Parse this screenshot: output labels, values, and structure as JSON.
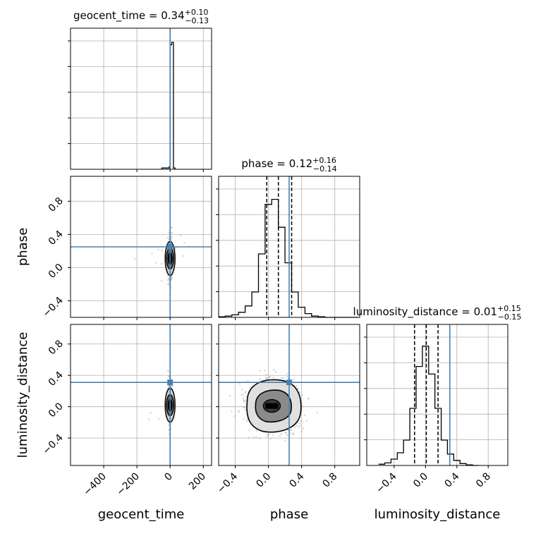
{
  "chart_data": {
    "type": "corner",
    "parameters": [
      "geocent_time",
      "phase",
      "luminosity_distance"
    ],
    "truth_color": "#4682b4",
    "truth": {
      "geocent_time": 0,
      "phase": 0.25,
      "luminosity_distance": 0.31
    },
    "diagonal": [
      {
        "param": "geocent_time",
        "title": {
          "prefix": "geocent_time = 0.34",
          "sup": "+0.10",
          "sub": "−0.13"
        },
        "xlim": [
          -600,
          250
        ],
        "bins": [
          [
            -50,
            -5,
            0.01
          ],
          [
            -5,
            0,
            0.02
          ],
          [
            0,
            10,
            0.98
          ],
          [
            10,
            20,
            1.0
          ],
          [
            20,
            30,
            0.01
          ]
        ],
        "quantiles": [
          0.21,
          0.34,
          0.44
        ],
        "truth": 0
      },
      {
        "param": "phase",
        "title": {
          "prefix": "phase = 0.12",
          "sup": "+0.16",
          "sub": "−0.14"
        },
        "xlim": [
          -0.6,
          1.1
        ],
        "bin_edges": [
          -0.6,
          -0.52,
          -0.44,
          -0.36,
          -0.28,
          -0.2,
          -0.12,
          -0.04,
          0.04,
          0.12,
          0.2,
          0.28,
          0.36,
          0.44,
          0.52,
          0.6,
          0.68,
          0.76,
          0.84,
          0.92,
          1.0,
          1.08
        ],
        "counts": [
          0.005,
          0.01,
          0.02,
          0.04,
          0.09,
          0.2,
          0.5,
          0.89,
          0.93,
          0.71,
          0.43,
          0.2,
          0.08,
          0.03,
          0.01,
          0.005,
          0,
          0,
          0,
          0,
          0
        ],
        "quantiles": [
          -0.02,
          0.12,
          0.28
        ],
        "truth": 0.25
      },
      {
        "param": "luminosity_distance",
        "title": {
          "prefix": "luminosity_distance = 0.01",
          "sup": "+0.15",
          "sub": "−0.15"
        },
        "xlim": [
          -0.75,
          1.05
        ],
        "bin_edges": [
          -0.6,
          -0.52,
          -0.44,
          -0.36,
          -0.28,
          -0.2,
          -0.12,
          -0.04,
          0.04,
          0.12,
          0.2,
          0.28,
          0.36,
          0.44,
          0.52,
          0.6,
          0.68
        ],
        "counts": [
          0.01,
          0.02,
          0.05,
          0.1,
          0.2,
          0.45,
          0.78,
          0.94,
          0.72,
          0.45,
          0.2,
          0.09,
          0.04,
          0.015,
          0.005,
          0
        ],
        "quantiles": [
          -0.14,
          0.01,
          0.16
        ],
        "truth": 0.31
      }
    ],
    "panels_2d": [
      {
        "x": "geocent_time",
        "y": "phase",
        "xlim": [
          -600,
          250
        ],
        "ylim": [
          -0.6,
          1.1
        ],
        "center": [
          0,
          0.11
        ]
      },
      {
        "x": "geocent_time",
        "y": "luminosity_distance",
        "xlim": [
          -600,
          250
        ],
        "ylim": [
          -0.75,
          1.05
        ],
        "center": [
          0,
          0.02
        ]
      },
      {
        "x": "phase",
        "y": "luminosity_distance",
        "xlim": [
          -0.6,
          1.1
        ],
        "ylim": [
          -0.75,
          1.05
        ],
        "center": [
          0.05,
          0.01
        ]
      }
    ],
    "ticks": {
      "geocent_time": {
        "values": [
          -400,
          -200,
          0,
          200
        ],
        "labels": [
          "−400",
          "−200",
          "0",
          "200"
        ]
      },
      "phase": {
        "values": [
          -0.4,
          0.0,
          0.4,
          0.8
        ],
        "labels": [
          "−0.4",
          "0.0",
          "0.4",
          "0.8"
        ]
      },
      "luminosity_distance": {
        "values": [
          -0.4,
          0.0,
          0.4,
          0.8
        ],
        "labels": [
          "−0.4",
          "0.0",
          "0.4",
          "0.8"
        ]
      }
    },
    "xlabels": [
      "geocent_time",
      "phase",
      "luminosity_distance"
    ],
    "ylabels": [
      "phase",
      "luminosity_distance"
    ],
    "grid": true
  }
}
